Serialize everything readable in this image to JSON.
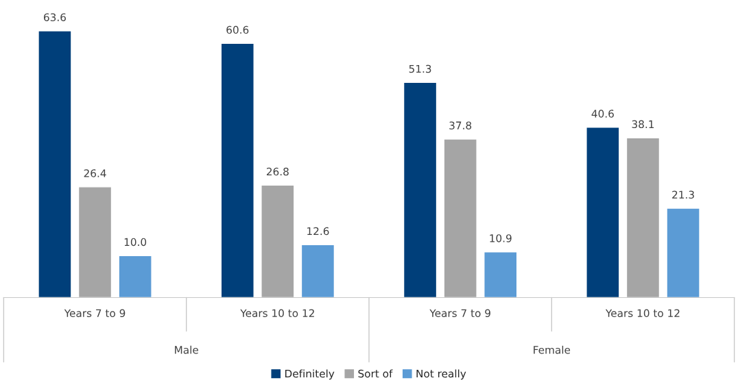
{
  "chart_data": {
    "type": "bar",
    "categories": [
      "Years 7 to 9",
      "Years 10 to 12",
      "Years 7 to 9",
      "Years 10 to 12"
    ],
    "series": [
      {
        "name": "Definitely",
        "color": "#003f7a",
        "values": [
          63.6,
          60.6,
          51.3,
          40.6
        ],
        "value_labels": [
          "63.6",
          "60.6",
          "51.3",
          "40.6"
        ]
      },
      {
        "name": "Sort of",
        "color": "#a5a5a5",
        "values": [
          26.4,
          26.8,
          37.8,
          38.1
        ],
        "value_labels": [
          "26.4",
          "26.8",
          "37.8",
          "38.1"
        ]
      },
      {
        "name": "Not really",
        "color": "#5b9bd5",
        "values": [
          10.0,
          12.6,
          10.9,
          21.3
        ],
        "value_labels": [
          "10.0",
          "12.6",
          "10.9",
          "21.3"
        ]
      }
    ],
    "annotations": [
      "Male",
      "Female"
    ],
    "legend": "bottom",
    "grid": false
  }
}
